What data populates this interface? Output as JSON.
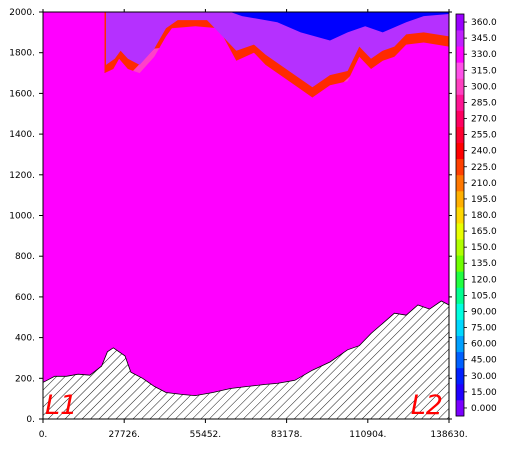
{
  "chart_data": {
    "type": "heatmap",
    "x_ticks": [
      "0.",
      "27726.",
      "55452.",
      "83178.",
      "110904.",
      "138630."
    ],
    "x_tick_values": [
      0,
      27726,
      55452,
      83178,
      110904,
      138630
    ],
    "y_ticks": [
      "0.",
      "200.",
      "400.",
      "600.",
      "800.",
      "1000.",
      "1200.",
      "1400.",
      "1600.",
      "1800.",
      "2000."
    ],
    "y_tick_values": [
      0,
      200,
      400,
      600,
      800,
      1000,
      1200,
      1400,
      1600,
      1800,
      2000
    ],
    "xlim": [
      0,
      138630
    ],
    "ylim": [
      0,
      2000
    ],
    "colorbar": {
      "labels": [
        "0.000",
        "15.00",
        "30.00",
        "45.00",
        "60.00",
        "75.00",
        "90.00",
        "105.0",
        "120.0",
        "135.0",
        "150.0",
        "165.0",
        "180.0",
        "195.0",
        "210.0",
        "225.0",
        "240.0",
        "255.0",
        "270.0",
        "285.0",
        "300.0",
        "315.0",
        "330.0",
        "345.0",
        "360.0"
      ],
      "colors": [
        "#7b00ff",
        "#2000ff",
        "#0020ff",
        "#0060ff",
        "#00a0ff",
        "#00d8ff",
        "#00ffe0",
        "#00ff90",
        "#20ff40",
        "#70ff00",
        "#b0ff00",
        "#e8ff00",
        "#ffd800",
        "#ffb000",
        "#ff7800",
        "#ff4000",
        "#ff0000",
        "#ff0030",
        "#ff0060",
        "#ff1493",
        "#ff40c0",
        "#ff50e8",
        "#ff00ff",
        "#c020ff",
        "#9a00ff"
      ]
    },
    "contour_fields": [
      {
        "level": 210,
        "color": "#ffc000",
        "points": [
          [
            18000,
            150
          ],
          [
            30000,
            190
          ],
          [
            45000,
            150
          ],
          [
            55000,
            140
          ],
          [
            70000,
            180
          ],
          [
            86000,
            210
          ],
          [
            95000,
            320
          ],
          [
            104000,
            480
          ],
          [
            114000,
            620
          ],
          [
            122000,
            700
          ],
          [
            130000,
            840
          ],
          [
            138630,
            1080
          ],
          [
            138630,
            0
          ],
          [
            0,
            0
          ]
        ]
      },
      {
        "level": 240,
        "color": "#ff6f00",
        "points": [
          [
            0,
            240
          ],
          [
            8000,
            380
          ],
          [
            12000,
            420
          ],
          [
            20000,
            380
          ],
          [
            26000,
            300
          ],
          [
            32000,
            380
          ],
          [
            38000,
            520
          ],
          [
            45000,
            600
          ],
          [
            55000,
            620
          ],
          [
            65000,
            700
          ],
          [
            74000,
            720
          ],
          [
            84000,
            640
          ],
          [
            90000,
            800
          ],
          [
            98000,
            960
          ],
          [
            108000,
            1040
          ],
          [
            118000,
            1080
          ],
          [
            126000,
            1180
          ],
          [
            132000,
            1040
          ],
          [
            138630,
            1180
          ],
          [
            138630,
            0
          ],
          [
            0,
            0
          ]
        ]
      },
      {
        "level": 270,
        "color": "#ff1a00",
        "points": [
          [
            0,
            1080
          ],
          [
            10000,
            1140
          ],
          [
            20000,
            1200
          ],
          [
            30000,
            1260
          ],
          [
            40000,
            1300
          ],
          [
            48000,
            1320
          ],
          [
            56000,
            1250
          ],
          [
            66000,
            1180
          ],
          [
            76000,
            1160
          ],
          [
            86000,
            1210
          ],
          [
            96000,
            1240
          ],
          [
            106000,
            1260
          ],
          [
            116000,
            1260
          ],
          [
            126000,
            1270
          ],
          [
            138630,
            1300
          ],
          [
            138630,
            0
          ],
          [
            0,
            0
          ]
        ]
      },
      {
        "level": 285,
        "color": "#ff0055",
        "points": [
          [
            0,
            1330
          ],
          [
            10000,
            1370
          ],
          [
            20000,
            1380
          ],
          [
            30000,
            1400
          ],
          [
            40000,
            1450
          ],
          [
            50000,
            1430
          ],
          [
            60000,
            1420
          ],
          [
            72000,
            1360
          ],
          [
            84000,
            1330
          ],
          [
            96000,
            1370
          ],
          [
            108000,
            1400
          ],
          [
            118000,
            1440
          ],
          [
            128000,
            1470
          ],
          [
            138630,
            1500
          ],
          [
            138630,
            0
          ],
          [
            0,
            0
          ]
        ]
      },
      {
        "level": 300,
        "color": "#ff1493",
        "points": [
          [
            0,
            1520
          ],
          [
            10000,
            1560
          ],
          [
            20000,
            1600
          ],
          [
            30000,
            1620
          ],
          [
            40000,
            1700
          ],
          [
            50000,
            1700
          ],
          [
            60000,
            1660
          ],
          [
            70000,
            1600
          ],
          [
            80000,
            1560
          ],
          [
            90000,
            1530
          ],
          [
            100000,
            1560
          ],
          [
            110000,
            1580
          ],
          [
            120000,
            1620
          ],
          [
            130000,
            1660
          ],
          [
            138630,
            1700
          ],
          [
            138630,
            0
          ],
          [
            0,
            0
          ]
        ]
      },
      {
        "level": 315,
        "color": "#ff40c8",
        "points": [
          [
            0,
            1700
          ],
          [
            10000,
            1750
          ],
          [
            20000,
            1640
          ],
          [
            24000,
            1720
          ],
          [
            30000,
            1700
          ],
          [
            38000,
            1820
          ],
          [
            50000,
            1840
          ],
          [
            62000,
            1820
          ],
          [
            68000,
            1700
          ],
          [
            74000,
            1740
          ],
          [
            80000,
            1660
          ],
          [
            88000,
            1600
          ],
          [
            92000,
            1560
          ],
          [
            100000,
            1620
          ],
          [
            106000,
            1700
          ],
          [
            112000,
            1640
          ],
          [
            118000,
            1700
          ],
          [
            124000,
            1720
          ],
          [
            132000,
            1760
          ],
          [
            138630,
            1760
          ],
          [
            138630,
            0
          ],
          [
            0,
            0
          ]
        ]
      },
      {
        "level": 330,
        "color": "#ff00ff",
        "points": [
          [
            0,
            2000
          ],
          [
            21000,
            2000
          ],
          [
            21000,
            1700
          ],
          [
            24000,
            1720
          ],
          [
            26000,
            1770
          ],
          [
            29000,
            1720
          ],
          [
            33000,
            1700
          ],
          [
            38000,
            1780
          ],
          [
            42000,
            1880
          ],
          [
            44000,
            1920
          ],
          [
            52000,
            1930
          ],
          [
            60000,
            1920
          ],
          [
            66000,
            1760
          ],
          [
            72000,
            1800
          ],
          [
            76000,
            1740
          ],
          [
            86000,
            1640
          ],
          [
            92000,
            1580
          ],
          [
            98000,
            1640
          ],
          [
            104000,
            1660
          ],
          [
            108000,
            1780
          ],
          [
            112000,
            1720
          ],
          [
            116000,
            1760
          ],
          [
            120000,
            1780
          ],
          [
            124000,
            1840
          ],
          [
            130000,
            1850
          ],
          [
            138630,
            1830
          ],
          [
            138630,
            0
          ],
          [
            0,
            0
          ]
        ]
      },
      {
        "level": 345,
        "color": "#b530ff",
        "points": [
          [
            21500,
            2000
          ],
          [
            21500,
            1740
          ],
          [
            24500,
            1770
          ],
          [
            26500,
            1810
          ],
          [
            29000,
            1770
          ],
          [
            33000,
            1740
          ],
          [
            38000,
            1820
          ],
          [
            42000,
            1920
          ],
          [
            46000,
            1960
          ],
          [
            56000,
            1960
          ],
          [
            66000,
            1810
          ],
          [
            72000,
            1840
          ],
          [
            76000,
            1790
          ],
          [
            86000,
            1690
          ],
          [
            92000,
            1630
          ],
          [
            98000,
            1690
          ],
          [
            104000,
            1710
          ],
          [
            108000,
            1830
          ],
          [
            112000,
            1770
          ],
          [
            116000,
            1810
          ],
          [
            120000,
            1830
          ],
          [
            124000,
            1890
          ],
          [
            130000,
            1900
          ],
          [
            138630,
            1880
          ],
          [
            138630,
            2000
          ]
        ]
      },
      {
        "level": 360,
        "color": "#0000ff",
        "points": [
          [
            64000,
            2000
          ],
          [
            68000,
            1980
          ],
          [
            80000,
            1950
          ],
          [
            88000,
            1900
          ],
          [
            98000,
            1860
          ],
          [
            104000,
            1900
          ],
          [
            110000,
            1930
          ],
          [
            116000,
            1900
          ],
          [
            124000,
            1950
          ],
          [
            130000,
            1980
          ],
          [
            138630,
            1990
          ],
          [
            138630,
            2000
          ]
        ]
      }
    ],
    "terrain": [
      [
        0,
        180
      ],
      [
        4000,
        210
      ],
      [
        8000,
        210
      ],
      [
        12000,
        220
      ],
      [
        16000,
        215
      ],
      [
        20000,
        260
      ],
      [
        22000,
        330
      ],
      [
        24000,
        350
      ],
      [
        28000,
        310
      ],
      [
        30000,
        230
      ],
      [
        34000,
        200
      ],
      [
        38000,
        160
      ],
      [
        42000,
        130
      ],
      [
        48000,
        120
      ],
      [
        52000,
        115
      ],
      [
        58000,
        130
      ],
      [
        64000,
        150
      ],
      [
        70000,
        160
      ],
      [
        76000,
        170
      ],
      [
        80000,
        175
      ],
      [
        86000,
        190
      ],
      [
        92000,
        240
      ],
      [
        98000,
        280
      ],
      [
        104000,
        340
      ],
      [
        108000,
        360
      ],
      [
        112000,
        420
      ],
      [
        116000,
        470
      ],
      [
        120000,
        520
      ],
      [
        124000,
        510
      ],
      [
        128000,
        560
      ],
      [
        132000,
        540
      ],
      [
        136000,
        580
      ],
      [
        138630,
        560
      ]
    ],
    "annotations": [
      "L1",
      "L2"
    ]
  }
}
